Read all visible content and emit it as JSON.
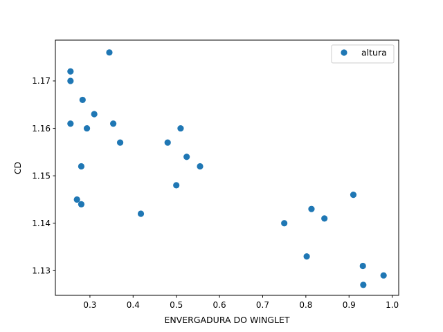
{
  "chart_data": {
    "type": "scatter",
    "xlabel": "ENVERGADURA DO WINGLET",
    "ylabel": "CD",
    "xlim": [
      0.22,
      1.015
    ],
    "ylim": [
      1.1248,
      1.1786
    ],
    "xticks": [
      0.3,
      0.4,
      0.5,
      0.6,
      0.7,
      0.8,
      0.9,
      1.0
    ],
    "xtick_labels": [
      "0.3",
      "0.4",
      "0.5",
      "0.6",
      "0.7",
      "0.8",
      "0.9",
      "1.0"
    ],
    "yticks": [
      1.13,
      1.14,
      1.15,
      1.16,
      1.17
    ],
    "ytick_labels": [
      "1.13",
      "1.14",
      "1.15",
      "1.16",
      "1.17"
    ],
    "grid": false,
    "legend_position": "top-right",
    "series": [
      {
        "name": "altura",
        "color": "#1f77b4",
        "points": [
          {
            "x": 0.345,
            "y": 1.176
          },
          {
            "x": 0.255,
            "y": 1.172
          },
          {
            "x": 0.255,
            "y": 1.17
          },
          {
            "x": 0.283,
            "y": 1.166
          },
          {
            "x": 0.31,
            "y": 1.163
          },
          {
            "x": 0.255,
            "y": 1.161
          },
          {
            "x": 0.293,
            "y": 1.16
          },
          {
            "x": 0.354,
            "y": 1.161
          },
          {
            "x": 0.37,
            "y": 1.157
          },
          {
            "x": 0.28,
            "y": 1.152
          },
          {
            "x": 0.27,
            "y": 1.145
          },
          {
            "x": 0.28,
            "y": 1.144
          },
          {
            "x": 0.418,
            "y": 1.142
          },
          {
            "x": 0.48,
            "y": 1.157
          },
          {
            "x": 0.51,
            "y": 1.16
          },
          {
            "x": 0.524,
            "y": 1.154
          },
          {
            "x": 0.555,
            "y": 1.152
          },
          {
            "x": 0.5,
            "y": 1.148
          },
          {
            "x": 0.75,
            "y": 1.14
          },
          {
            "x": 0.802,
            "y": 1.133
          },
          {
            "x": 0.813,
            "y": 1.143
          },
          {
            "x": 0.843,
            "y": 1.141
          },
          {
            "x": 0.91,
            "y": 1.146
          },
          {
            "x": 0.932,
            "y": 1.131
          },
          {
            "x": 0.933,
            "y": 1.127
          },
          {
            "x": 0.98,
            "y": 1.129
          }
        ]
      }
    ]
  }
}
